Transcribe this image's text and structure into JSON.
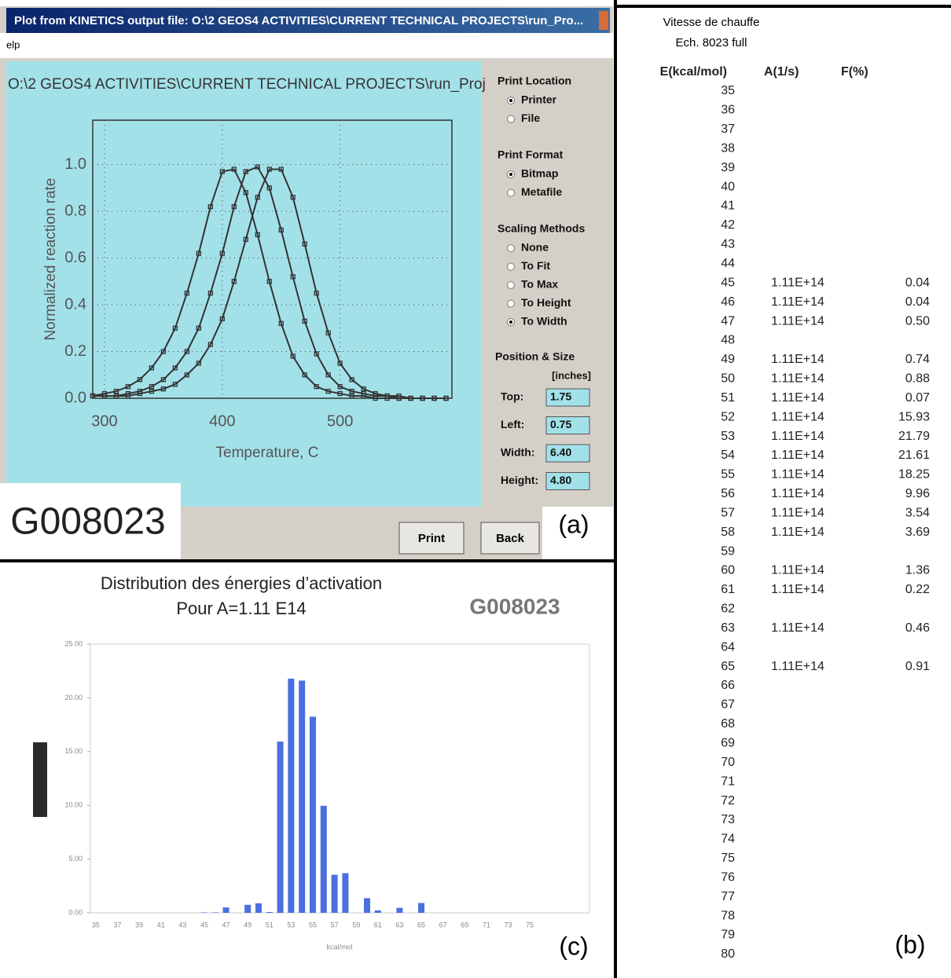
{
  "window": {
    "title": "Plot from KINETICS output file: O:\\2 GEOS4 ACTIVITIES\\CURRENT TECHNICAL PROJECTS\\run_Pro...",
    "menu": "elp",
    "path": "O:\\2 GEOS4 ACTIVITIES\\CURRENT TECHNICAL PROJECTS\\run_Proj",
    "print_location": {
      "title": "Print Location",
      "options": [
        "Printer",
        "File"
      ],
      "selected": 0
    },
    "print_format": {
      "title": "Print Format",
      "options": [
        "Bitmap",
        "Metafile"
      ],
      "selected": 0
    },
    "scaling_methods": {
      "title": "Scaling Methods",
      "options": [
        "None",
        "To Fit",
        "To Max",
        "To Height",
        "To Width"
      ],
      "selected": 4
    },
    "position_size": {
      "title": "Position & Size",
      "unit": "[inches]",
      "fields": [
        {
          "label": "Top:",
          "value": "1.75"
        },
        {
          "label": "Left:",
          "value": "0.75"
        },
        {
          "label": "Width:",
          "value": "6.40"
        },
        {
          "label": "Height:",
          "value": "4.80"
        }
      ]
    },
    "buttons": [
      "Print",
      "Back"
    ],
    "sample": "G008023",
    "panel_label": "(a)"
  },
  "chart_data": [
    {
      "type": "line",
      "xlabel": "Temperature, C",
      "ylabel": "Normalized reaction rate",
      "x": [
        290,
        300,
        310,
        320,
        330,
        340,
        350,
        360,
        370,
        380,
        390,
        400,
        410,
        420,
        430,
        440,
        450,
        460,
        470,
        480,
        490,
        500,
        510,
        520,
        530,
        540,
        550,
        560,
        570,
        580,
        590
      ],
      "series": [
        {
          "color": "#333333",
          "values": [
            0.01,
            0.02,
            0.03,
            0.05,
            0.08,
            0.13,
            0.2,
            0.3,
            0.45,
            0.62,
            0.82,
            0.97,
            0.98,
            0.88,
            0.7,
            0.5,
            0.32,
            0.18,
            0.1,
            0.05,
            0.03,
            0.02,
            0.01,
            0.01,
            0,
            0,
            0,
            0,
            0,
            0,
            0
          ]
        },
        {
          "color": "#333333",
          "values": [
            0.01,
            0.01,
            0.01,
            0.02,
            0.03,
            0.05,
            0.08,
            0.13,
            0.2,
            0.3,
            0.45,
            0.62,
            0.82,
            0.97,
            0.99,
            0.9,
            0.72,
            0.52,
            0.33,
            0.19,
            0.1,
            0.05,
            0.03,
            0.02,
            0.01,
            0.01,
            0,
            0,
            0,
            0,
            0
          ]
        },
        {
          "color": "#333333",
          "values": [
            0.01,
            0.01,
            0.01,
            0.01,
            0.02,
            0.03,
            0.04,
            0.06,
            0.1,
            0.15,
            0.23,
            0.34,
            0.5,
            0.68,
            0.86,
            0.98,
            0.98,
            0.86,
            0.66,
            0.45,
            0.28,
            0.15,
            0.08,
            0.04,
            0.02,
            0.01,
            0.01,
            0,
            0,
            0,
            0
          ]
        }
      ],
      "xlim": [
        290,
        595
      ],
      "ylim": [
        0,
        1.19
      ],
      "xticks": [
        300,
        400,
        500
      ],
      "yticks": [
        {
          "value": 0,
          "label": "0.0"
        },
        0.2,
        0.4,
        0.6,
        0.8,
        {
          "value": 1,
          "label": "1.0"
        }
      ],
      "grid": true
    },
    {
      "type": "bar",
      "title": "Distribution des énergies d’activation",
      "subtitle": "Pour A=1.11 E14",
      "xlabel": "kcal/mol",
      "categories": [
        35,
        null,
        37,
        null,
        39,
        null,
        41,
        null,
        43,
        null,
        45,
        null,
        47,
        null,
        49,
        null,
        51,
        null,
        53,
        null,
        55,
        null,
        57,
        null,
        59,
        null,
        61,
        null,
        63,
        null,
        65,
        null,
        67,
        null,
        69,
        null,
        71,
        null,
        73,
        null,
        75,
        null,
        null,
        null,
        null,
        null
      ],
      "values": [
        null,
        null,
        null,
        null,
        null,
        null,
        null,
        null,
        null,
        null,
        0.04,
        0.04,
        0.5,
        null,
        0.74,
        0.88,
        0.07,
        15.93,
        21.79,
        21.61,
        18.25,
        9.96,
        3.54,
        3.69,
        null,
        1.36,
        0.22,
        null,
        0.46,
        null,
        0.91,
        null,
        null,
        null,
        null,
        null,
        null,
        null,
        null,
        null,
        null,
        null,
        null,
        null,
        null,
        null
      ],
      "color": "#4a6fe0",
      "ylim": [
        0,
        25
      ],
      "yticks": [
        {
          "value": 0,
          "label": "0.00"
        },
        {
          "value": 5,
          "label": "5.00"
        },
        {
          "value": 10,
          "label": "10.00"
        },
        {
          "value": 15,
          "label": "15.00"
        },
        {
          "value": 20,
          "label": "20.00"
        },
        {
          "value": 25,
          "label": "25.00"
        }
      ]
    }
  ],
  "chart_panel": {
    "sample": "G008023",
    "panel_label": "(c)"
  },
  "table": {
    "title": "Vitesse de chauffe",
    "subtitle": "Ech. 8023 full",
    "columns": [
      "E(kcal/mol)",
      "A(1/s)",
      "F(%)"
    ],
    "rows": [
      [
        35,
        null,
        null
      ],
      [
        36,
        null,
        null
      ],
      [
        37,
        null,
        null
      ],
      [
        38,
        null,
        null
      ],
      [
        39,
        null,
        null
      ],
      [
        40,
        null,
        null
      ],
      [
        41,
        null,
        null
      ],
      [
        42,
        null,
        null
      ],
      [
        43,
        null,
        null
      ],
      [
        44,
        null,
        null
      ],
      [
        45,
        "1.11E+14",
        "0.04"
      ],
      [
        46,
        "1.11E+14",
        "0.04"
      ],
      [
        47,
        "1.11E+14",
        "0.50"
      ],
      [
        48,
        null,
        null
      ],
      [
        49,
        "1.11E+14",
        "0.74"
      ],
      [
        50,
        "1.11E+14",
        "0.88"
      ],
      [
        51,
        "1.11E+14",
        "0.07"
      ],
      [
        52,
        "1.11E+14",
        "15.93"
      ],
      [
        53,
        "1.11E+14",
        "21.79"
      ],
      [
        54,
        "1.11E+14",
        "21.61"
      ],
      [
        55,
        "1.11E+14",
        "18.25"
      ],
      [
        56,
        "1.11E+14",
        "9.96"
      ],
      [
        57,
        "1.11E+14",
        "3.54"
      ],
      [
        58,
        "1.11E+14",
        "3.69"
      ],
      [
        59,
        null,
        null
      ],
      [
        60,
        "1.11E+14",
        "1.36"
      ],
      [
        61,
        "1.11E+14",
        "0.22"
      ],
      [
        62,
        null,
        null
      ],
      [
        63,
        "1.11E+14",
        "0.46"
      ],
      [
        64,
        null,
        null
      ],
      [
        65,
        "1.11E+14",
        "0.91"
      ],
      [
        66,
        null,
        null
      ],
      [
        67,
        null,
        null
      ],
      [
        68,
        null,
        null
      ],
      [
        69,
        null,
        null
      ],
      [
        70,
        null,
        null
      ],
      [
        71,
        null,
        null
      ],
      [
        72,
        null,
        null
      ],
      [
        73,
        null,
        null
      ],
      [
        74,
        null,
        null
      ],
      [
        75,
        null,
        null
      ],
      [
        76,
        null,
        null
      ],
      [
        77,
        null,
        null
      ],
      [
        78,
        null,
        null
      ],
      [
        79,
        null,
        null
      ],
      [
        80,
        null,
        null
      ]
    ],
    "panel_label": "(b)"
  }
}
